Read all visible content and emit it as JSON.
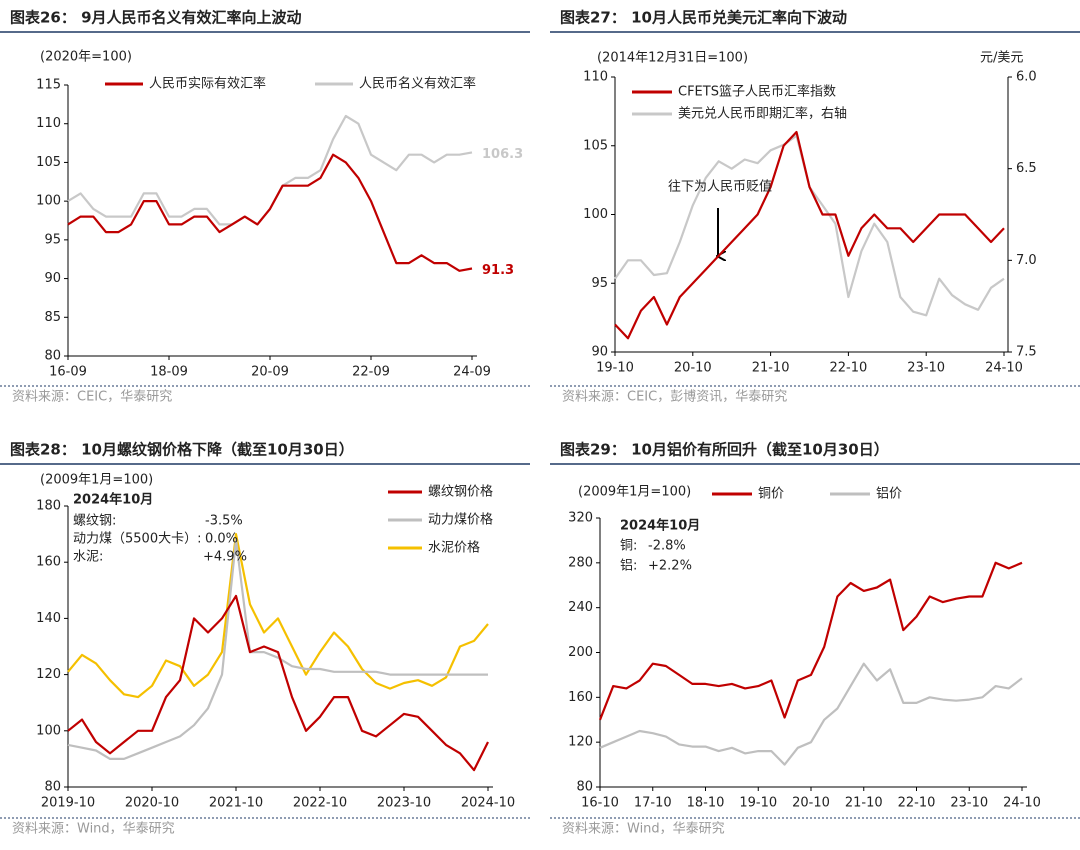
{
  "chart_data": [
    {
      "type": "line",
      "title": "图表26： 9月人民币名义有效汇率向上波动",
      "source": "资料来源：CEIC，华泰研究",
      "annotations": [
        "(2020年=100)"
      ],
      "x": [
        "16-09",
        "16-12",
        "17-03",
        "17-06",
        "17-09",
        "17-12",
        "18-03",
        "18-06",
        "18-09",
        "18-12",
        "19-03",
        "19-06",
        "19-09",
        "19-12",
        "20-03",
        "20-06",
        "20-09",
        "20-12",
        "21-03",
        "21-06",
        "21-09",
        "21-12",
        "22-03",
        "22-06",
        "22-09",
        "22-12",
        "23-03",
        "23-06",
        "23-09",
        "23-12",
        "24-03",
        "24-06",
        "24-09"
      ],
      "xticks": [
        "16-09",
        "18-09",
        "20-09",
        "22-09",
        "24-09"
      ],
      "ylim": [
        80,
        115
      ],
      "yticks": [
        80,
        85,
        90,
        95,
        100,
        105,
        110,
        115
      ],
      "series": [
        {
          "name": "人民币实际有效汇率",
          "color": "#c00000",
          "values": [
            97,
            98,
            98,
            96,
            96,
            97,
            100,
            100,
            97,
            97,
            98,
            98,
            96,
            97,
            98,
            97,
            99,
            102,
            102,
            102,
            103,
            106,
            105,
            103,
            100,
            96,
            92,
            92,
            93,
            92,
            92,
            91,
            91.3
          ]
        },
        {
          "name": "人民币名义有效汇率",
          "color": "#c8c8c8",
          "values": [
            100,
            101,
            99,
            98,
            98,
            98,
            101,
            101,
            98,
            98,
            99,
            99,
            97,
            97,
            98,
            97,
            99,
            102,
            103,
            103,
            104,
            108,
            111,
            110,
            106,
            105,
            104,
            106,
            106,
            105,
            106,
            106,
            106.3
          ]
        }
      ]
    },
    {
      "type": "line",
      "title": "图表27： 10月人民币兑美元汇率向下波动",
      "source": "资料来源：CEIC，彭博资讯，华泰研究",
      "annotations": [
        "(2014年12月31日=100)",
        "元/美元",
        "往下为人民币贬值"
      ],
      "x": [
        "19-10",
        "19-12",
        "20-02",
        "20-04",
        "20-06",
        "20-08",
        "20-10",
        "20-12",
        "21-02",
        "21-04",
        "21-06",
        "21-08",
        "21-10",
        "21-12",
        "22-02",
        "22-04",
        "22-06",
        "22-08",
        "22-10",
        "22-12",
        "23-02",
        "23-04",
        "23-06",
        "23-08",
        "23-10",
        "23-12",
        "24-02",
        "24-04",
        "24-06",
        "24-08",
        "24-10"
      ],
      "xticks": [
        "19-10",
        "20-10",
        "21-10",
        "22-10",
        "23-10",
        "24-10"
      ],
      "ylim": [
        90,
        110
      ],
      "yticks": [
        90,
        95,
        100,
        105,
        110
      ],
      "y2lim": [
        7.5,
        6.0
      ],
      "y2ticks": [
        {
          "value": 6,
          "label": "6.0"
        },
        6.5,
        {
          "value": 7,
          "label": "7.0"
        },
        7.5
      ],
      "series": [
        {
          "name": "CFETS篮子人民币汇率指数",
          "color": "#c00000",
          "values": [
            92,
            91,
            93,
            94,
            92,
            94,
            95,
            96,
            97,
            98,
            99,
            100,
            102,
            105,
            106,
            102,
            100,
            100,
            97,
            99,
            100,
            99,
            99,
            98,
            99,
            100,
            100,
            100,
            99,
            98,
            99
          ]
        },
        {
          "name": "美元兑人民币即期汇率，右轴",
          "color": "#c8c8c8",
          "axis": "y2",
          "values": [
            7.1,
            7.0,
            7.0,
            7.08,
            7.07,
            6.9,
            6.7,
            6.55,
            6.46,
            6.5,
            6.45,
            6.47,
            6.4,
            6.37,
            6.32,
            6.6,
            6.7,
            6.8,
            7.2,
            6.95,
            6.8,
            6.9,
            7.2,
            7.28,
            7.3,
            7.1,
            7.19,
            7.24,
            7.27,
            7.15,
            7.1
          ]
        }
      ]
    },
    {
      "type": "line",
      "title": "图表28： 10月螺纹钢价格下降（截至10月30日）",
      "source": "资料来源：Wind，华泰研究",
      "annotations": [
        "(2009年1月=100)",
        "2024年10月",
        "螺纹钢:",
        "-3.5%",
        "动力煤（5500大卡）:",
        "0.0%",
        "水泥:",
        "+4.9%"
      ],
      "x": [
        "2019-10",
        "2019-12",
        "2020-02",
        "2020-04",
        "2020-06",
        "2020-08",
        "2020-10",
        "2020-12",
        "2021-02",
        "2021-04",
        "2021-06",
        "2021-08",
        "2021-10",
        "2021-12",
        "2022-02",
        "2022-04",
        "2022-06",
        "2022-08",
        "2022-10",
        "2022-12",
        "2023-02",
        "2023-04",
        "2023-06",
        "2023-08",
        "2023-10",
        "2023-12",
        "2024-02",
        "2024-04",
        "2024-06",
        "2024-08",
        "2024-10"
      ],
      "xticks": [
        "2019-10",
        "2020-10",
        "2021-10",
        "2022-10",
        "2023-10",
        "2024-10"
      ],
      "ylim": [
        80,
        180
      ],
      "yticks": [
        80,
        100,
        120,
        140,
        160,
        180
      ],
      "series": [
        {
          "name": "螺纹钢价格",
          "color": "#c00000",
          "values": [
            100,
            104,
            96,
            92,
            96,
            100,
            100,
            112,
            118,
            140,
            135,
            140,
            148,
            128,
            130,
            128,
            112,
            100,
            105,
            112,
            112,
            100,
            98,
            102,
            106,
            105,
            100,
            95,
            92,
            86,
            96
          ]
        },
        {
          "name": "动力煤价格",
          "color": "#bfbfbf",
          "values": [
            95,
            94,
            93,
            90,
            90,
            92,
            94,
            96,
            98,
            102,
            108,
            120,
            168,
            128,
            128,
            126,
            123,
            122,
            122,
            121,
            121,
            121,
            121,
            120,
            120,
            120,
            120,
            120,
            120,
            120,
            120
          ]
        },
        {
          "name": "水泥价格",
          "color": "#f5c000",
          "values": [
            121,
            127,
            124,
            118,
            113,
            112,
            116,
            125,
            123,
            116,
            120,
            128,
            170,
            145,
            135,
            140,
            130,
            120,
            128,
            135,
            130,
            122,
            117,
            115,
            117,
            118,
            116,
            119,
            130,
            132,
            138
          ]
        }
      ]
    },
    {
      "type": "line",
      "title": "图表29： 10月铝价有所回升（截至10月30日）",
      "source": "资料来源：Wind，华泰研究",
      "annotations": [
        "(2009年1月=100)",
        "2024年10月",
        "铜:",
        "-2.8%",
        "铝:",
        "+2.2%"
      ],
      "x": [
        "16-10",
        "17-01",
        "17-04",
        "17-07",
        "17-10",
        "18-01",
        "18-04",
        "18-07",
        "18-10",
        "19-01",
        "19-04",
        "19-07",
        "19-10",
        "20-01",
        "20-04",
        "20-07",
        "20-10",
        "21-01",
        "21-04",
        "21-07",
        "21-10",
        "22-01",
        "22-04",
        "22-07",
        "22-10",
        "23-01",
        "23-04",
        "23-07",
        "23-10",
        "24-01",
        "24-04",
        "24-07",
        "24-10"
      ],
      "xticks": [
        "16-10",
        "17-10",
        "18-10",
        "19-10",
        "20-10",
        "21-10",
        "22-10",
        "23-10",
        "24-10"
      ],
      "ylim": [
        80,
        320
      ],
      "yticks": [
        80,
        120,
        160,
        200,
        240,
        280,
        320
      ],
      "series": [
        {
          "name": "铜价",
          "color": "#c00000",
          "values": [
            140,
            170,
            168,
            175,
            190,
            188,
            180,
            172,
            172,
            170,
            172,
            168,
            170,
            175,
            142,
            175,
            180,
            205,
            250,
            262,
            255,
            258,
            265,
            220,
            232,
            250,
            245,
            248,
            250,
            250,
            280,
            275,
            280
          ]
        },
        {
          "name": "铝价",
          "color": "#bfbfbf",
          "values": [
            115,
            120,
            125,
            130,
            128,
            125,
            118,
            116,
            116,
            112,
            115,
            110,
            112,
            112,
            100,
            115,
            120,
            140,
            150,
            170,
            190,
            175,
            185,
            155,
            155,
            160,
            158,
            157,
            158,
            160,
            170,
            168,
            177
          ]
        }
      ]
    }
  ]
}
